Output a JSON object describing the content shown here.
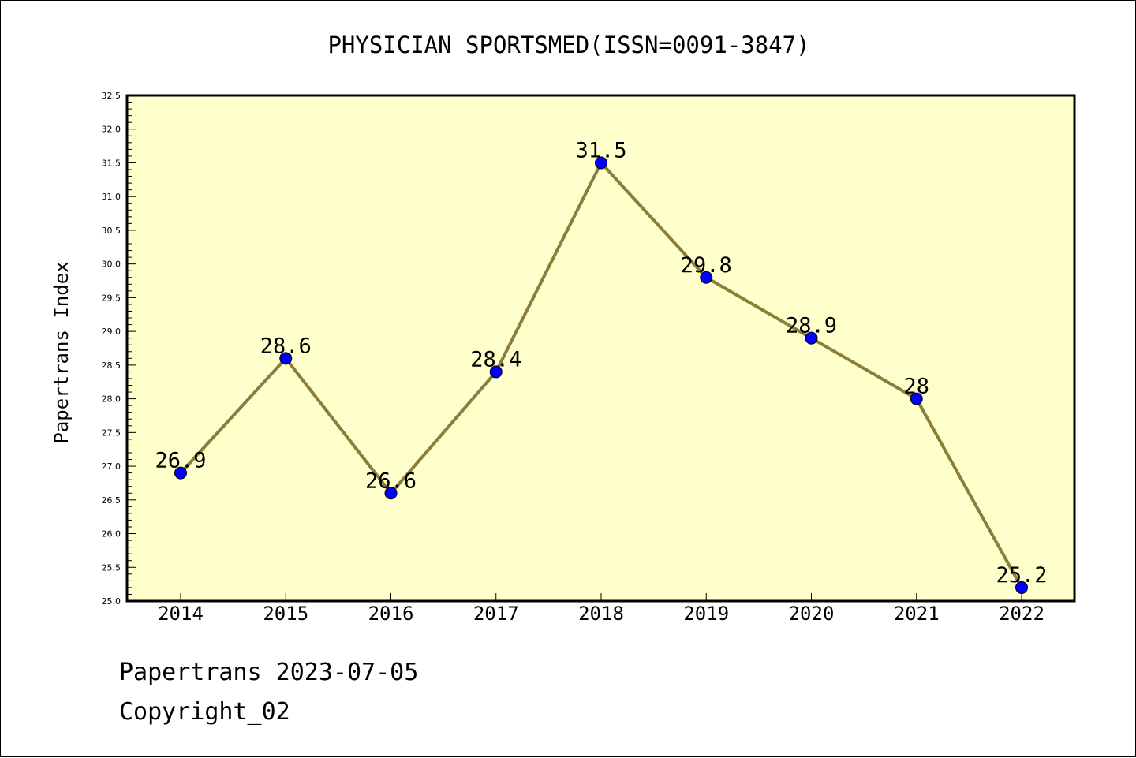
{
  "chart_data": {
    "type": "line",
    "title": "PHYSICIAN SPORTSMED(ISSN=0091-3847)",
    "xlabel": "",
    "ylabel": "Papertrans Index",
    "categories": [
      "2014",
      "2015",
      "2016",
      "2017",
      "2018",
      "2019",
      "2020",
      "2021",
      "2022"
    ],
    "series": [
      {
        "values": [
          26.9,
          28.6,
          26.6,
          28.4,
          31.5,
          29.8,
          28.9,
          28.0,
          25.2
        ],
        "data_labels": [
          "26.9",
          "28.6",
          "26.6",
          "28.4",
          "31.5",
          "29.8",
          "28.9",
          "28",
          "25.2"
        ]
      }
    ],
    "ylim": [
      25.0,
      32.5
    ],
    "yticks": [
      "25.0",
      "25.5",
      "26.0",
      "26.5",
      "27.0",
      "27.5",
      "28.0",
      "28.5",
      "29.0",
      "29.5",
      "30.0",
      "30.5",
      "31.0",
      "31.5",
      "32.0",
      "32.5"
    ],
    "grid": false,
    "colors": {
      "plot_background": "#ffffcc",
      "line": "#8b7d3a",
      "marker": "#0000ff"
    }
  },
  "footer": {
    "source": "Papertrans 2023-07-05",
    "copyright": "Copyright_02"
  }
}
